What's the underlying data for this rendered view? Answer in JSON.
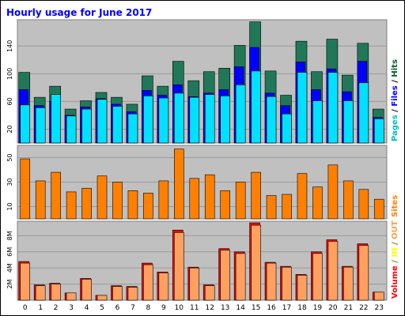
{
  "chart_data": {
    "type": "bar",
    "title": "Hourly usage for June 2017",
    "categories": [
      "0",
      "1",
      "2",
      "3",
      "4",
      "5",
      "6",
      "7",
      "8",
      "9",
      "10",
      "11",
      "12",
      "13",
      "14",
      "15",
      "16",
      "17",
      "18",
      "19",
      "20",
      "21",
      "22",
      "23"
    ],
    "panels": [
      {
        "id": "top",
        "yticks": [
          "20",
          "60",
          "100",
          "140"
        ],
        "ytick_values": [
          20,
          60,
          100,
          140
        ],
        "ylim": [
          0,
          178
        ],
        "legend": [
          {
            "text": "Pages",
            "color": "#00c0c0"
          },
          {
            "text": " / ",
            "color": "#000000"
          },
          {
            "text": "Files",
            "color": "#0000ff"
          },
          {
            "text": " / ",
            "color": "#000000"
          },
          {
            "text": "Hits",
            "color": "#006030"
          }
        ],
        "series": [
          {
            "name": "Hits",
            "color": "#207858",
            "values": [
              102,
              66,
              82,
              49,
              61,
              73,
              66,
              56,
              97,
              82,
              118,
              90,
              103,
              108,
              141,
              175,
              104,
              69,
              147,
              103,
              150,
              98,
              144,
              49
            ]
          },
          {
            "name": "Files",
            "color": "#0000ff",
            "values": [
              77,
              54,
              60,
              40,
              52,
              64,
              56,
              45,
              76,
              69,
              84,
              67,
              72,
              77,
              110,
              138,
              72,
              54,
              117,
              77,
              107,
              74,
              118,
              37
            ]
          },
          {
            "name": "Pages",
            "color": "#00e0ff",
            "values": [
              55,
              51,
              70,
              39,
              49,
              63,
              53,
              42,
              68,
              65,
              72,
              66,
              70,
              68,
              84,
              104,
              67,
              42,
              102,
              61,
              102,
              61,
              87,
              35
            ]
          }
        ]
      },
      {
        "id": "middle",
        "yticks": [
          "10",
          "30",
          "50"
        ],
        "ytick_values": [
          10,
          30,
          50
        ],
        "ylim": [
          0,
          60
        ],
        "legend": [
          {
            "text": "Sites",
            "color": "#ff8000"
          }
        ],
        "series": [
          {
            "name": "Sites",
            "color": "#ff8000",
            "values": [
              49,
              31,
              38,
              22,
              25,
              35,
              30,
              23,
              21,
              31,
              57,
              33,
              36,
              23,
              30,
              38,
              19,
              20,
              37,
              26,
              44,
              31,
              24,
              16
            ]
          }
        ]
      },
      {
        "id": "bottom",
        "yticks": [
          "2M",
          "4M",
          "6M",
          "8M"
        ],
        "ytick_values": [
          2,
          4,
          6,
          8
        ],
        "ylim": [
          0,
          9.8
        ],
        "legend": [
          {
            "text": "Volume",
            "color": "#ff0000"
          },
          {
            "text": " / ",
            "color": "#808000"
          },
          {
            "text": "IN",
            "color": "#ffff00"
          },
          {
            "text": " / ",
            "color": "#808000"
          },
          {
            "text": "OUT",
            "color": "#ffa040"
          }
        ],
        "series": [
          {
            "name": "Volume",
            "color": "#ff0000",
            "values": [
              4.8,
              1.9,
              2.1,
              0.9,
              2.7,
              0.6,
              1.8,
              1.7,
              4.6,
              3.5,
              8.7,
              4.1,
              1.9,
              6.4,
              6.0,
              9.6,
              4.7,
              4.2,
              3.2,
              6.0,
              7.5,
              4.2,
              7.0,
              1.0
            ]
          },
          {
            "name": "OUT",
            "color": "#ffa060",
            "values": [
              4.6,
              1.8,
              2.0,
              0.9,
              2.6,
              0.6,
              1.7,
              1.6,
              4.4,
              3.4,
              8.4,
              4.0,
              1.8,
              6.2,
              5.8,
              9.3,
              4.6,
              4.1,
              3.1,
              5.8,
              7.3,
              4.1,
              6.8,
              1.0
            ]
          }
        ]
      }
    ]
  }
}
